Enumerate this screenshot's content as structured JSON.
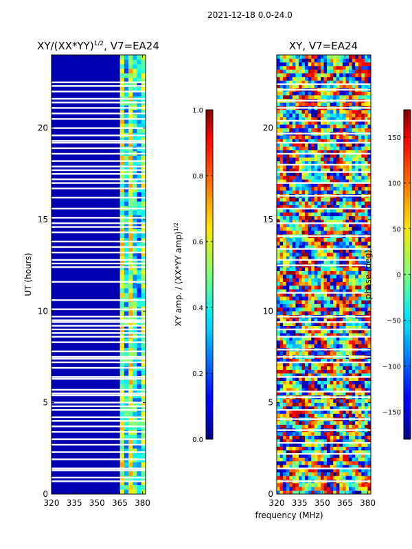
{
  "figure": {
    "suptitle": "2021-12-18 0.0-24.0",
    "xlabel": "frequency (MHz)"
  },
  "chart_data": [
    {
      "type": "heatmap",
      "title": "XY/(XX*YY)",
      "title_exponent": "1/2",
      "title_suffix": ", V7=EA24",
      "xlabel": "",
      "ylabel": "UT (hours)",
      "xlim": [
        320,
        382
      ],
      "ylim": [
        0,
        24
      ],
      "xticks": [
        320,
        335,
        350,
        365,
        380
      ],
      "yticks": [
        0,
        5,
        10,
        15,
        20
      ],
      "colormap": "jet",
      "colorbar": {
        "label": "XY amp. / (XX*YY amp)",
        "label_exponent": "1/2",
        "vmin": 0.0,
        "vmax": 1.0,
        "ticks": [
          0.0,
          0.2,
          0.4,
          0.6,
          0.8,
          1.0
        ],
        "tick_labels": [
          "0.0",
          "0.2",
          "0.4",
          "0.6",
          "0.8",
          "1.0"
        ]
      },
      "background_value": 0.05,
      "active_band_mhz": [
        363,
        382
      ],
      "flagged_hours": [
        0.7,
        0.9,
        1.3,
        1.4,
        1.9,
        2.3,
        2.7,
        3.0,
        3.4,
        3.7,
        4.0,
        4.2,
        4.6,
        4.8,
        5.0,
        5.4,
        5.5,
        5.7,
        6.3,
        6.4,
        6.9,
        7.2,
        7.4,
        7.5,
        7.8,
        8.3,
        8.6,
        8.8,
        9.0,
        9.2,
        9.4,
        9.5,
        9.7,
        10.1,
        10.6,
        11.6,
        12.4,
        12.6,
        12.8,
        13.2,
        13.5,
        13.8,
        14.3,
        14.6,
        14.8,
        15.1,
        15.6,
        16.2,
        16.7,
        17.0,
        17.2,
        17.5,
        17.7,
        17.9,
        18.2,
        18.6,
        18.9,
        19.2,
        19.3,
        19.6,
        20.0,
        20.5,
        20.8,
        21.1,
        21.4,
        21.6,
        22.0,
        22.3,
        22.5
      ]
    },
    {
      "type": "heatmap",
      "title": "XY, V7=EA24",
      "xlabel": "",
      "ylabel": "",
      "xlim": [
        320,
        382
      ],
      "ylim": [
        0,
        24
      ],
      "xticks": [
        320,
        335,
        350,
        365,
        380
      ],
      "yticks": [
        0,
        5,
        10,
        15,
        20
      ],
      "colormap": "jet",
      "colorbar": {
        "label": "phase (deg)",
        "vmin": -180,
        "vmax": 180,
        "ticks": [
          -150,
          -100,
          -50,
          0,
          50,
          100,
          150
        ],
        "tick_labels": [
          "−150",
          "−100",
          "−50",
          "0",
          "50",
          "100",
          "150"
        ]
      },
      "flagged_hours": [
        0.7,
        1.4,
        2.2,
        2.8,
        3.5,
        4.1,
        4.6,
        5.3,
        5.6,
        6.4,
        7.2,
        7.5,
        7.9,
        8.6,
        9.0,
        9.4,
        9.7,
        11.0,
        12.5,
        12.8,
        13.4,
        14.1,
        14.8,
        15.6,
        16.3,
        17.0,
        17.6,
        18.0,
        18.6,
        19.2,
        19.7,
        20.4,
        21.1,
        21.5,
        22.1,
        22.4
      ]
    }
  ]
}
